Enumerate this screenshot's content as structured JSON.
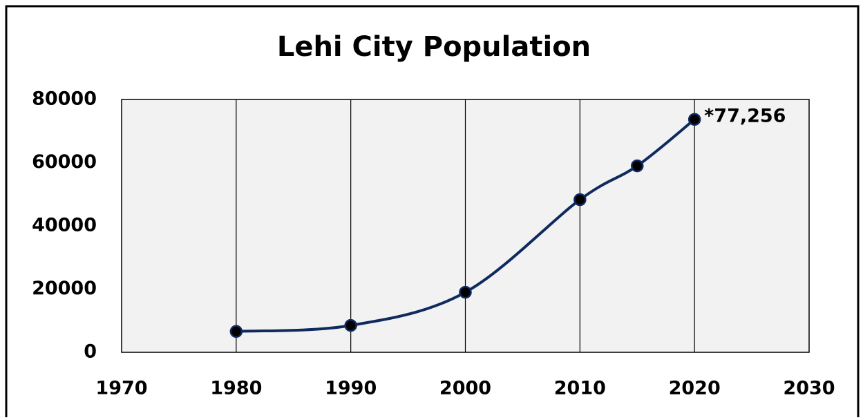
{
  "chart_data": {
    "type": "line",
    "title": "Lehi City Population",
    "x": [
      1980,
      1990,
      2000,
      2010,
      2015,
      2020
    ],
    "series": [
      {
        "name": "Population",
        "color": "#0f2a5e",
        "values": [
          6600,
          8500,
          19000,
          48300,
          59000,
          73700
        ]
      }
    ],
    "xlim": [
      1970,
      2030
    ],
    "xticks": [
      1970,
      1980,
      1990,
      2000,
      2010,
      2020,
      2030
    ],
    "ylim": [
      0,
      80000
    ],
    "yticks": [
      0,
      20000,
      40000,
      60000,
      80000
    ],
    "grid": true,
    "annotations": [
      {
        "text": "*77,256"
      }
    ]
  }
}
